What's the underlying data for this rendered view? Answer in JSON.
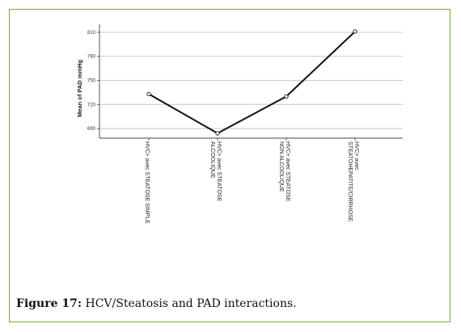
{
  "figure": {
    "label": "Figure 17:",
    "text": "HCV/Steatosis and PAD interactions."
  },
  "colors": {
    "border": "#6fae3a",
    "line": "#111111",
    "grid": "#c8c8c8"
  },
  "chart_data": {
    "type": "line",
    "ylabel": "Mean of PAD mmHg",
    "xlabel": "",
    "yticks": [
      "810",
      "780",
      "750",
      "720",
      "690"
    ],
    "ytick_values": [
      810,
      780,
      750,
      720,
      690
    ],
    "ylim": [
      678,
      816
    ],
    "grid": true,
    "categories": [
      [
        "HVC+ avec STEATOSE SIMPLE"
      ],
      [
        "HVC+ avec STEATOSE",
        "ALCOOLIQUE"
      ],
      [
        "HVC+ avec STEATOSE",
        "NON ALCOOLIQUE"
      ],
      [
        "HVC+ avec",
        "STEATOHEPATITE/CIRRHOSE"
      ]
    ],
    "values": [
      733,
      684,
      730,
      811
    ]
  }
}
